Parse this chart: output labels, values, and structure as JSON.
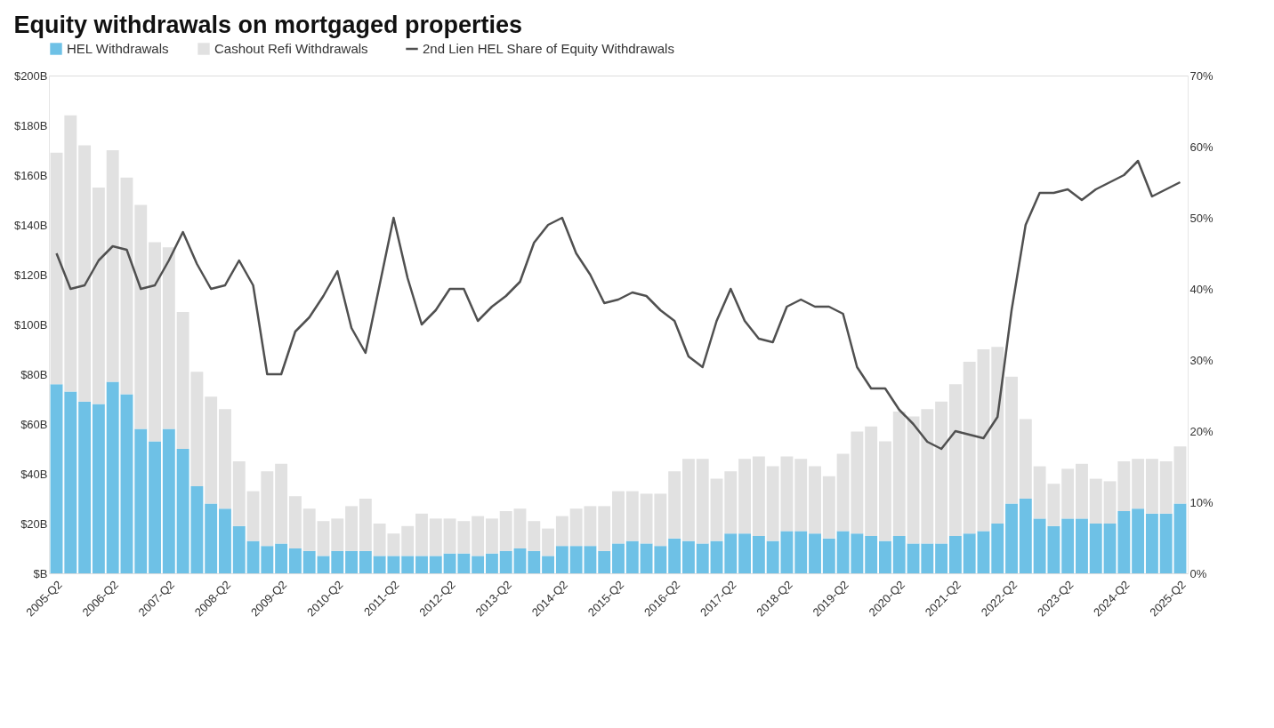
{
  "chart_data": {
    "type": "bar",
    "title": "Equity withdrawals on mortgaged properties",
    "stacked": true,
    "legend": "top left",
    "grid": false,
    "categories": [
      "2005-Q2",
      null,
      null,
      null,
      "2006-Q2",
      null,
      null,
      null,
      "2007-Q2",
      null,
      null,
      null,
      "2008-Q2",
      null,
      null,
      null,
      "2009-Q2",
      null,
      null,
      null,
      "2010-Q2",
      null,
      null,
      null,
      "2011-Q2",
      null,
      null,
      null,
      "2012-Q2",
      null,
      null,
      null,
      "2013-Q2",
      null,
      null,
      null,
      "2014-Q2",
      null,
      null,
      null,
      "2015-Q2",
      null,
      null,
      null,
      "2016-Q2",
      null,
      null,
      null,
      "2017-Q2",
      null,
      null,
      null,
      "2018-Q2",
      null,
      null,
      null,
      "2019-Q2",
      null,
      null,
      null,
      "2020-Q2",
      null,
      null,
      null,
      "2021-Q2",
      null,
      null,
      null,
      "2022-Q2",
      null,
      null,
      null,
      "2023-Q2",
      null,
      null,
      null,
      "2024-Q2",
      null,
      null,
      null,
      "2025-Q2"
    ],
    "ylim": [
      0,
      200
    ],
    "yticks": [
      {
        "value": 0,
        "label": "$B"
      },
      {
        "value": 20,
        "label": "$20B"
      },
      {
        "value": 40,
        "label": "$40B"
      },
      {
        "value": 60,
        "label": "$60B"
      },
      {
        "value": 80,
        "label": "$80B"
      },
      {
        "value": 100,
        "label": "$100B"
      },
      {
        "value": 120,
        "label": "$120B"
      },
      {
        "value": 140,
        "label": "$140B"
      },
      {
        "value": 160,
        "label": "$160B"
      },
      {
        "value": 180,
        "label": "$180B"
      },
      {
        "value": 200,
        "label": "$200B"
      }
    ],
    "y2lim": [
      0,
      70
    ],
    "y2ticks": [
      {
        "value": 0,
        "label": "0%"
      },
      {
        "value": 10,
        "label": "10%"
      },
      {
        "value": 20,
        "label": "20%"
      },
      {
        "value": 30,
        "label": "30%"
      },
      {
        "value": 40,
        "label": "40%"
      },
      {
        "value": 50,
        "label": "50%"
      },
      {
        "value": 60,
        "label": "60%"
      },
      {
        "value": 70,
        "label": "70%"
      }
    ],
    "series": [
      {
        "name": "HEL Withdrawals",
        "color": "#6ec1e6",
        "values": [
          76,
          73,
          69,
          68,
          77,
          72,
          58,
          53,
          58,
          50,
          35,
          28,
          26,
          19,
          13,
          11,
          12,
          10,
          9,
          7,
          9,
          9,
          9,
          7,
          7,
          7,
          7,
          7,
          8,
          8,
          7,
          8,
          9,
          10,
          9,
          7,
          11,
          11,
          11,
          9,
          12,
          13,
          12,
          11,
          14,
          13,
          12,
          13,
          16,
          16,
          15,
          13,
          17,
          17,
          16,
          14,
          17,
          16,
          15,
          13,
          15,
          12,
          12,
          12,
          15,
          16,
          17,
          20,
          28,
          30,
          22,
          19,
          22,
          22,
          20,
          20,
          25,
          26,
          24,
          24,
          28
        ]
      },
      {
        "name": "Cashout Refi Withdrawals",
        "color": "#e1e1e1",
        "values": [
          93,
          111,
          103,
          87,
          93,
          87,
          90,
          80,
          73,
          55,
          46,
          43,
          40,
          26,
          20,
          30,
          32,
          21,
          17,
          14,
          13,
          18,
          21,
          13,
          9,
          12,
          17,
          15,
          14,
          13,
          16,
          14,
          16,
          16,
          12,
          11,
          12,
          15,
          16,
          18,
          21,
          20,
          20,
          21,
          27,
          33,
          34,
          25,
          25,
          30,
          32,
          30,
          30,
          29,
          27,
          25,
          31,
          41,
          44,
          40,
          50,
          51,
          54,
          57,
          61,
          69,
          73,
          71,
          51,
          32,
          21,
          17,
          20,
          22,
          18,
          17,
          20,
          20,
          22,
          21,
          23
        ]
      },
      {
        "name": "2nd Lien HEL Share of Equity Withdrawals",
        "type": "line",
        "axis": "y2",
        "color": "#505050",
        "values": [
          45,
          40,
          40.5,
          44,
          46,
          45.5,
          40,
          40.5,
          44,
          48,
          43.5,
          40,
          40.5,
          44,
          40.5,
          28,
          28,
          34,
          36,
          39,
          42.5,
          34.5,
          31,
          40.5,
          50,
          41.5,
          35,
          37,
          40,
          40,
          35.5,
          37.5,
          39,
          41,
          46.5,
          49,
          50,
          45,
          42,
          38,
          38.5,
          39.5,
          39,
          37,
          35.5,
          30.5,
          29,
          35.5,
          40,
          35.5,
          33,
          32.5,
          37.5,
          38.5,
          37.5,
          37.5,
          36.5,
          29,
          26,
          26,
          23,
          21,
          18.5,
          17.5,
          20,
          19.5,
          19,
          22,
          37,
          49,
          53.5,
          53.5,
          54,
          52.5,
          54,
          55,
          56,
          58,
          53,
          54,
          55
        ]
      }
    ]
  }
}
